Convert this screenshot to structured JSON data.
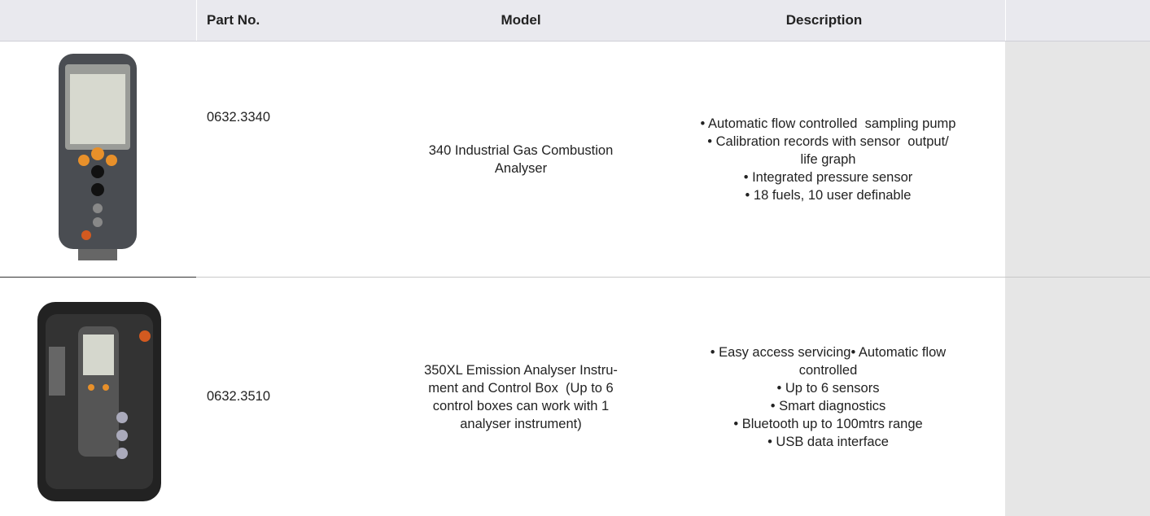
{
  "table": {
    "header": [
      "Part No.",
      "Model",
      "Description"
    ],
    "rows": [
      {
        "part_no": "0632.3340",
        "model": [
          "340 Industrial Gas Combustion",
          "Analyser"
        ],
        "description": [
          "• Automatic flow controlled  sampling pump",
          "• Calibration records with sensor  output/",
          "life graph",
          "• Integrated pressure sensor",
          "• 18 fuels, 10 user definable"
        ]
      },
      {
        "part_no": "0632.3510",
        "model": [
          "350XL Emission Analyser Instru-",
          "ment and Control Box  (Up to 6",
          "control boxes can work with 1",
          "analyser instrument)"
        ],
        "description": [
          "• Easy access servicing• Automatic flow",
          "controlled",
          "• Up to 6 sensors",
          "• Smart diagnostics",
          "• Bluetooth up to 100mtrs range",
          "• USB data interface"
        ]
      }
    ]
  }
}
